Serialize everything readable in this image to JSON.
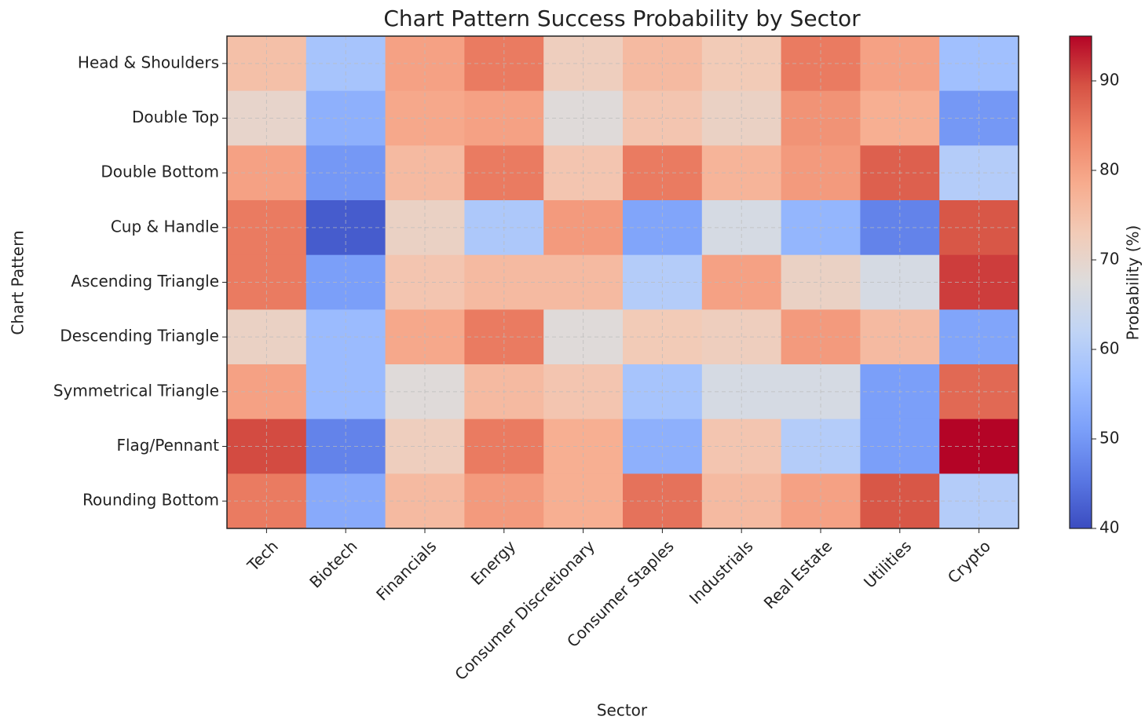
{
  "chart_data": {
    "type": "heatmap",
    "title": "Chart Pattern Success Probability by Sector",
    "xlabel": "Sector",
    "ylabel": "Chart Pattern",
    "colorbar_label": "Probability (%)",
    "colormap": "coolwarm",
    "grid": true,
    "categories": [
      "Tech",
      "Biotech",
      "Financials",
      "Energy",
      "Consumer Discretionary",
      "Consumer Staples",
      "Industrials",
      "Real Estate",
      "Utilities",
      "Crypto"
    ],
    "rows": [
      "Head & Shoulders",
      "Double Top",
      "Double Bottom",
      "Cup & Handle",
      "Ascending Triangle",
      "Descending Triangle",
      "Symmetrical Triangle",
      "Flag/Pennant",
      "Rounding Bottom"
    ],
    "values": [
      [
        75,
        58,
        80,
        85,
        72,
        76,
        73,
        85,
        80,
        57
      ],
      [
        70,
        54,
        79,
        80,
        68,
        74,
        71,
        82,
        78,
        50
      ],
      [
        80,
        50,
        76,
        85,
        74,
        85,
        77,
        81,
        88,
        60
      ],
      [
        85,
        42,
        71,
        59,
        81,
        52,
        66,
        55,
        47,
        89
      ],
      [
        85,
        51,
        74,
        76,
        76,
        60,
        80,
        71,
        66,
        91
      ],
      [
        71,
        56,
        79,
        85,
        68,
        73,
        72,
        81,
        76,
        52
      ],
      [
        80,
        56,
        68,
        76,
        74,
        58,
        66,
        66,
        51,
        87
      ],
      [
        90,
        47,
        72,
        85,
        78,
        54,
        74,
        60,
        51,
        95
      ],
      [
        85,
        53,
        76,
        81,
        78,
        86,
        76,
        80,
        89,
        60
      ]
    ],
    "clim": [
      40,
      95
    ],
    "cticks": [
      40,
      50,
      60,
      70,
      80,
      90
    ]
  }
}
